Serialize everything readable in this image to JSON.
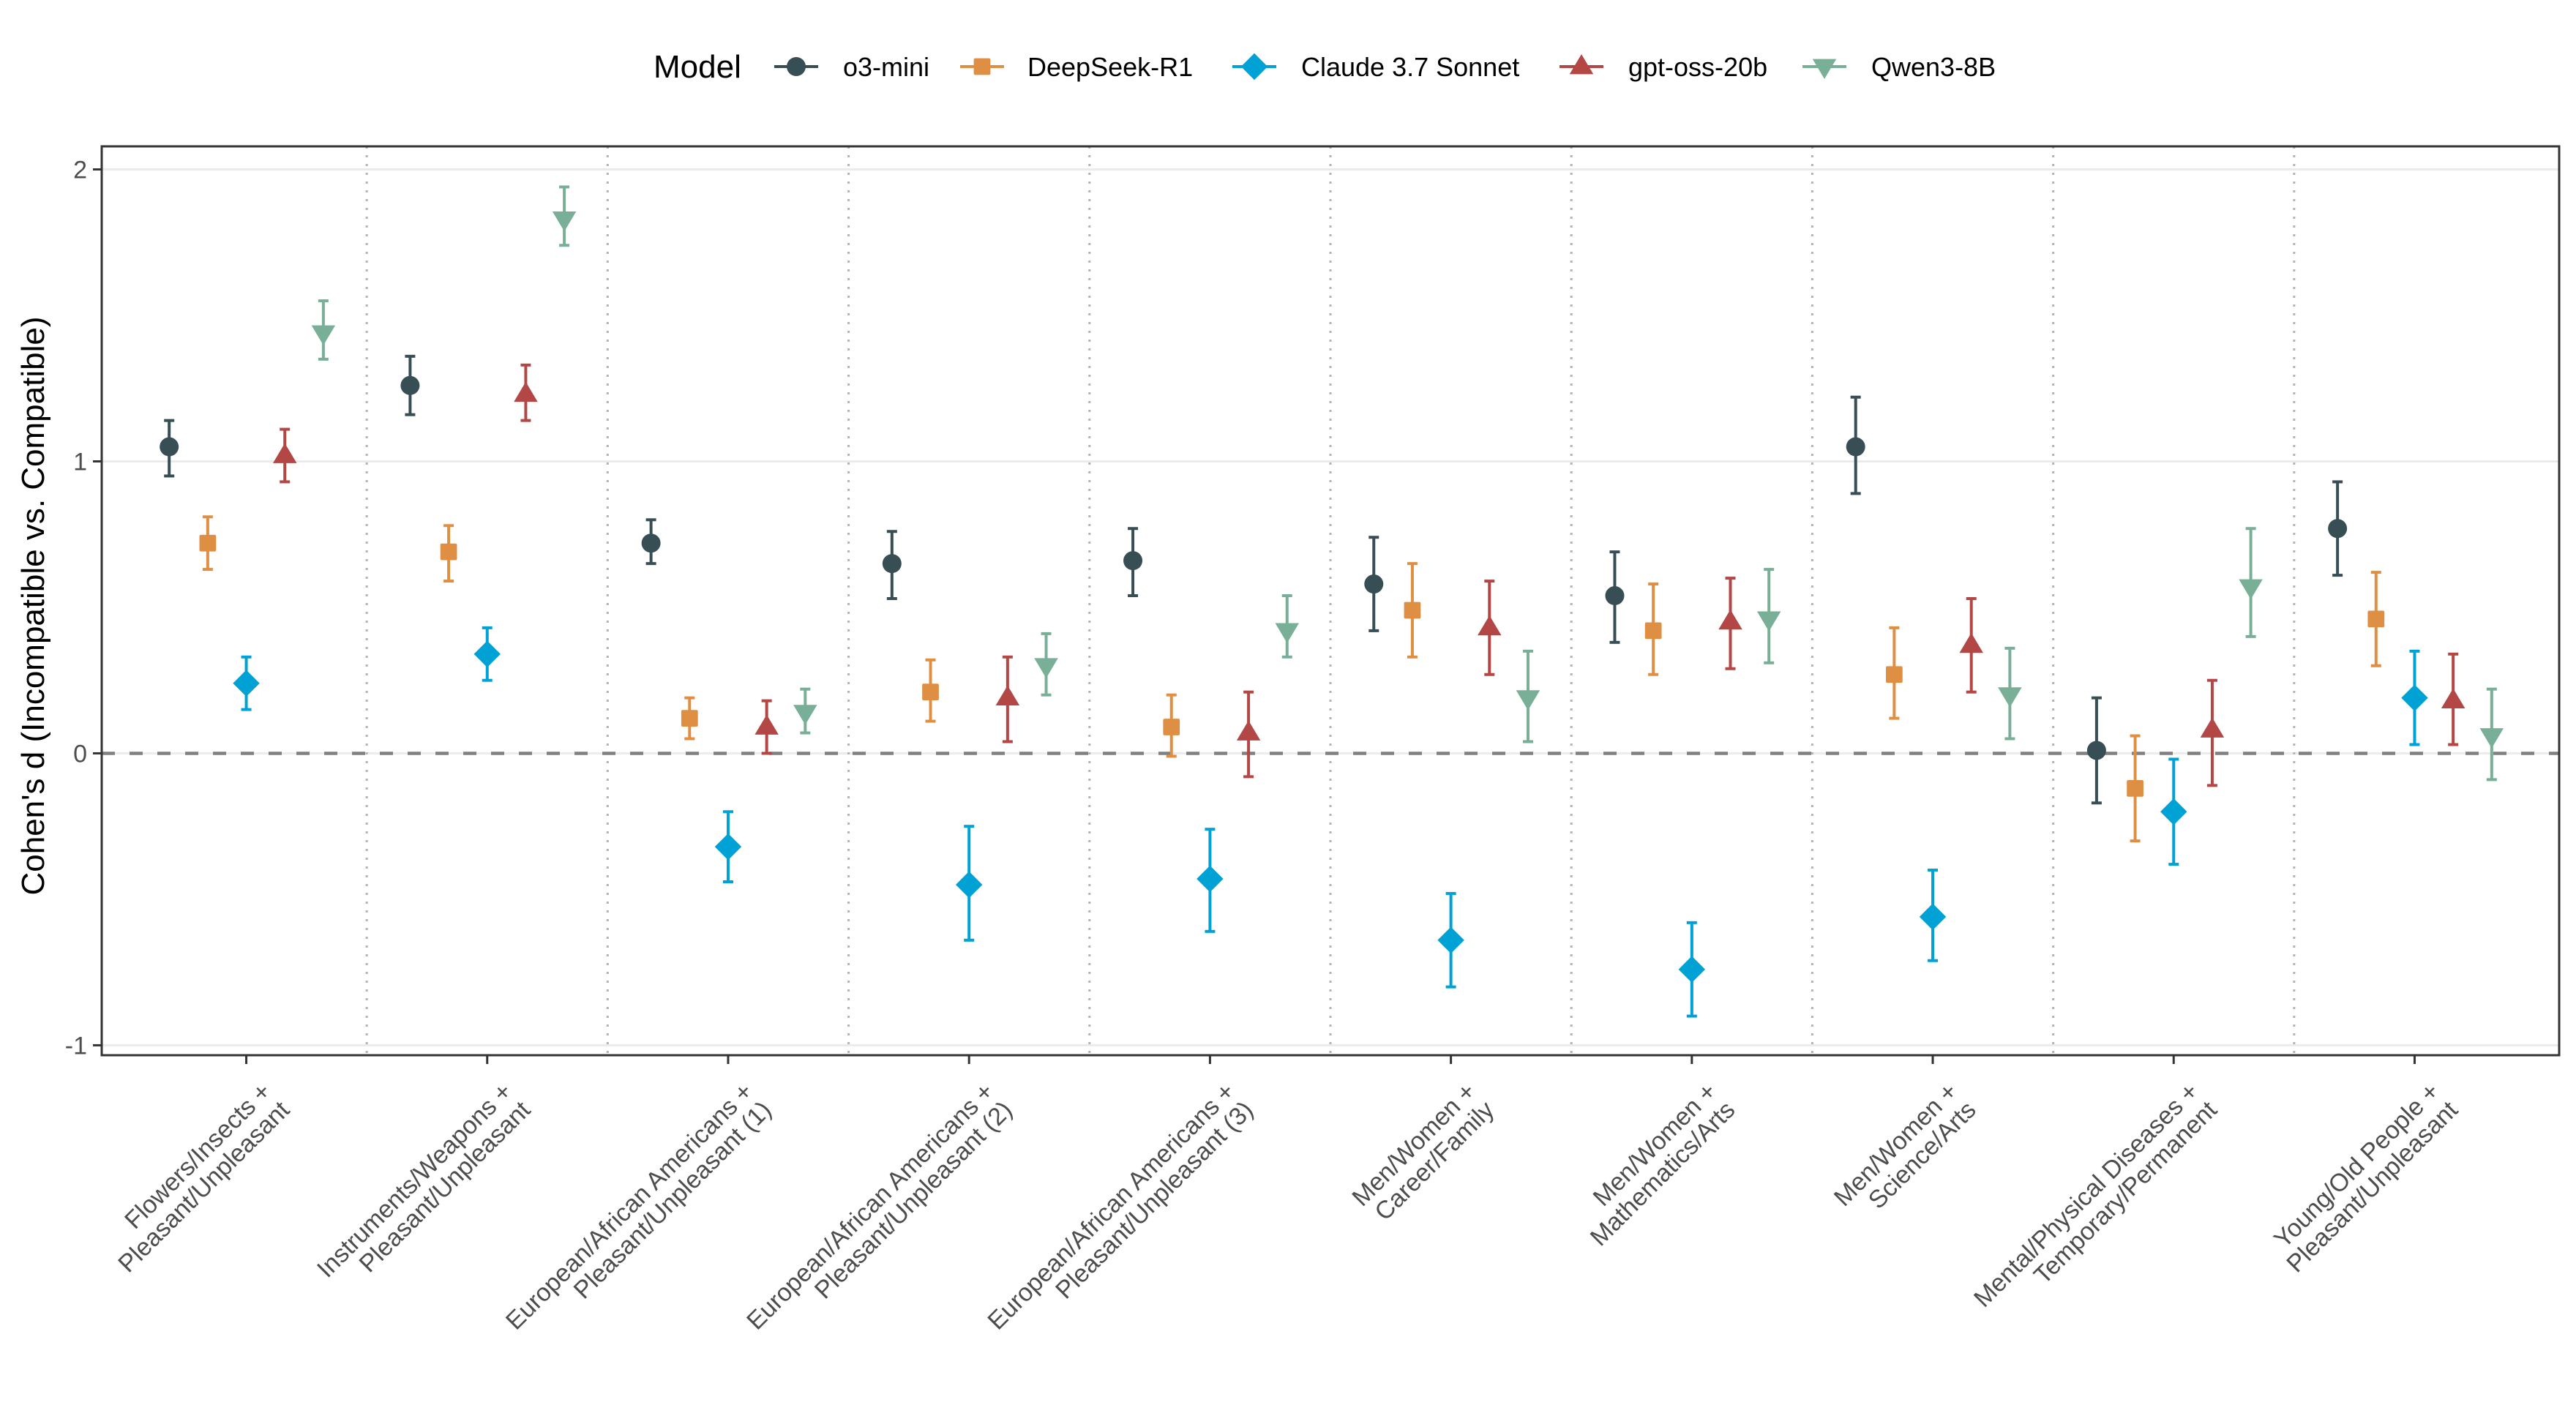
{
  "chart_data": {
    "type": "scatter",
    "subtype": "pointrange-dodged",
    "title": "",
    "xlabel": "",
    "ylabel": "Cohen's d (Incompatible vs. Compatible)",
    "ylim": [
      -1.034,
      2.079
    ],
    "yticks": [
      -1,
      0,
      1,
      2
    ],
    "ytick_labels": [
      "-1",
      "0",
      "1",
      "2"
    ],
    "grid": true,
    "reference_line": {
      "y": 0,
      "style": "dashed"
    },
    "category_separators": "dotted",
    "legend": {
      "title": "Model",
      "position": "top"
    },
    "categories": [
      [
        "Flowers/Insects +",
        "Pleasant/Unpleasant"
      ],
      [
        "Instruments/Weapons +",
        "Pleasant/Unpleasant"
      ],
      [
        "European/African Americans +",
        "Pleasant/Unpleasant (1)"
      ],
      [
        "European/African Americans +",
        "Pleasant/Unpleasant (2)"
      ],
      [
        "European/African Americans +",
        "Pleasant/Unpleasant (3)"
      ],
      [
        "Men/Women +",
        "Career/Family"
      ],
      [
        "Men/Women +",
        "Mathematics/Arts"
      ],
      [
        "Men/Women +",
        "Science/Arts"
      ],
      [
        "Mental/Physical Diseases +",
        "Temporary/Permanent"
      ],
      [
        "Young/Old People +",
        "Pleasant/Unpleasant"
      ]
    ],
    "series": [
      {
        "name": "o3-mini",
        "color": "#374E55",
        "shape": "circle",
        "values": [
          1.05,
          1.26,
          0.72,
          0.65,
          0.66,
          0.58,
          0.54,
          1.05,
          0.01,
          0.77
        ],
        "lower": [
          0.95,
          1.16,
          0.65,
          0.53,
          0.54,
          0.42,
          0.38,
          0.89,
          -0.17,
          0.61
        ],
        "upper": [
          1.14,
          1.36,
          0.8,
          0.76,
          0.77,
          0.74,
          0.69,
          1.22,
          0.19,
          0.93
        ]
      },
      {
        "name": "DeepSeek-R1",
        "color": "#DF8F44",
        "shape": "square",
        "values": [
          0.72,
          0.69,
          0.12,
          0.21,
          0.09,
          0.49,
          0.42,
          0.27,
          -0.12,
          0.46
        ],
        "lower": [
          0.63,
          0.59,
          0.05,
          0.11,
          -0.01,
          0.33,
          0.27,
          0.12,
          -0.3,
          0.3
        ],
        "upper": [
          0.81,
          0.78,
          0.19,
          0.32,
          0.2,
          0.65,
          0.58,
          0.43,
          0.06,
          0.62
        ]
      },
      {
        "name": "Claude 3.7 Sonnet",
        "color": "#00A1D5",
        "shape": "diamond",
        "values": [
          0.24,
          0.34,
          -0.32,
          -0.45,
          -0.43,
          -0.64,
          -0.74,
          -0.56,
          -0.2,
          0.19
        ],
        "lower": [
          0.15,
          0.25,
          -0.44,
          -0.64,
          -0.61,
          -0.8,
          -0.9,
          -0.71,
          -0.38,
          0.03
        ],
        "upper": [
          0.33,
          0.43,
          -0.2,
          -0.25,
          -0.26,
          -0.48,
          -0.58,
          -0.4,
          -0.02,
          0.35
        ]
      },
      {
        "name": "gpt-oss-20b",
        "color": "#B24745",
        "shape": "triangle-up",
        "values": [
          1.02,
          1.23,
          0.09,
          0.19,
          0.07,
          0.43,
          0.45,
          0.37,
          0.08,
          0.18
        ],
        "lower": [
          0.93,
          1.14,
          0.0,
          0.04,
          -0.08,
          0.27,
          0.29,
          0.21,
          -0.11,
          0.03
        ],
        "upper": [
          1.11,
          1.33,
          0.18,
          0.33,
          0.21,
          0.59,
          0.6,
          0.53,
          0.25,
          0.34
        ]
      },
      {
        "name": "Qwen3-8B",
        "color": "#79AF97",
        "shape": "triangle-down",
        "values": [
          1.44,
          1.83,
          0.14,
          0.3,
          0.42,
          0.19,
          0.46,
          0.2,
          0.57,
          0.06
        ],
        "lower": [
          1.35,
          1.74,
          0.07,
          0.2,
          0.33,
          0.04,
          0.31,
          0.05,
          0.4,
          -0.09
        ],
        "upper": [
          1.55,
          1.94,
          0.22,
          0.41,
          0.54,
          0.35,
          0.63,
          0.36,
          0.77,
          0.22
        ]
      }
    ]
  }
}
